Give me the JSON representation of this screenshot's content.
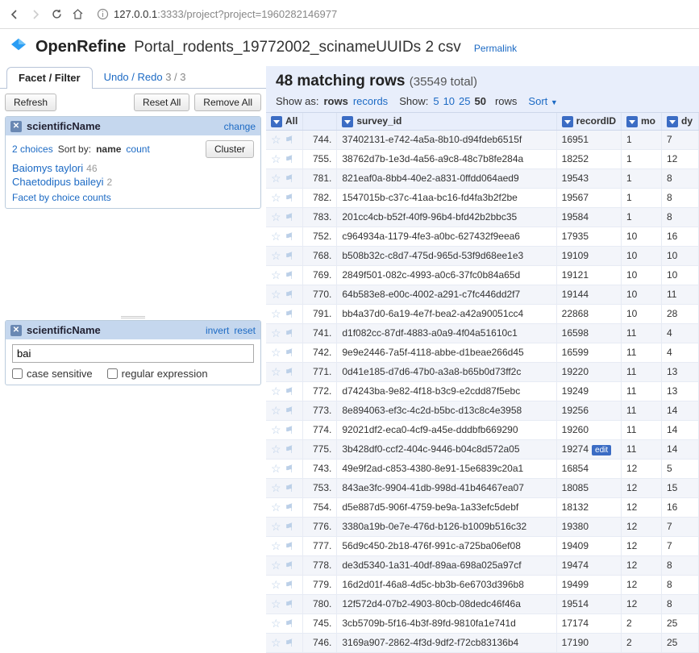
{
  "browser": {
    "url_prefix": "127.0.0.1",
    "url_rest": ":3333/project?project=1960282146977"
  },
  "header": {
    "app_name": "OpenRefine",
    "project_name": "Portal_rodents_19772002_scinameUUIDs 2 csv",
    "permalink": "Permalink"
  },
  "tabs": {
    "facet_filter": "Facet / Filter",
    "undo_redo": "Undo / Redo",
    "undo_count": "3 / 3"
  },
  "buttons": {
    "refresh": "Refresh",
    "reset_all": "Reset All",
    "remove_all": "Remove All",
    "cluster": "Cluster"
  },
  "facet1": {
    "title": "scientificName",
    "change": "change",
    "choices_label": "2 choices",
    "sort_by": "Sort by:",
    "sort_name": "name",
    "sort_count": "count",
    "choices": [
      {
        "label": "Baiomys taylori",
        "count": "46"
      },
      {
        "label": "Chaetodipus baileyi",
        "count": "2"
      }
    ],
    "by_counts": "Facet by choice counts"
  },
  "facet2": {
    "title": "scientificName",
    "invert": "invert",
    "reset": "reset",
    "value": "bai",
    "case_sensitive": "case sensitive",
    "regex": "regular expression"
  },
  "summary": {
    "matching": "48 matching rows",
    "total": "(35549 total)"
  },
  "view": {
    "show_as": "Show as:",
    "rows": "rows",
    "records": "records",
    "show": "Show:",
    "sizes": [
      "5",
      "10",
      "25",
      "50"
    ],
    "selected_size": "50",
    "rows_word": "rows",
    "sort": "Sort"
  },
  "columns": {
    "all": "All",
    "survey_id": "survey_id",
    "recordID": "recordID",
    "mo": "mo",
    "dy": "dy"
  },
  "rows": [
    {
      "idx": "744.",
      "sid": "37402131-e742-4a5a-8b10-d94fdeb6515f",
      "rid": "16951",
      "mo": "1",
      "dy": "7"
    },
    {
      "idx": "755.",
      "sid": "38762d7b-1e3d-4a56-a9c8-48c7b8fe284a",
      "rid": "18252",
      "mo": "1",
      "dy": "12"
    },
    {
      "idx": "781.",
      "sid": "821eaf0a-8bb4-40e2-a831-0ffdd064aed9",
      "rid": "19543",
      "mo": "1",
      "dy": "8"
    },
    {
      "idx": "782.",
      "sid": "1547015b-c37c-41aa-bc16-fd4fa3b2f2be",
      "rid": "19567",
      "mo": "1",
      "dy": "8"
    },
    {
      "idx": "783.",
      "sid": "201cc4cb-b52f-40f9-96b4-bfd42b2bbc35",
      "rid": "19584",
      "mo": "1",
      "dy": "8"
    },
    {
      "idx": "752.",
      "sid": "c964934a-1179-4fe3-a0bc-627432f9eea6",
      "rid": "17935",
      "mo": "10",
      "dy": "16"
    },
    {
      "idx": "768.",
      "sid": "b508b32c-c8d7-475d-965d-53f9d68ee1e3",
      "rid": "19109",
      "mo": "10",
      "dy": "10"
    },
    {
      "idx": "769.",
      "sid": "2849f501-082c-4993-a0c6-37fc0b84a65d",
      "rid": "19121",
      "mo": "10",
      "dy": "10"
    },
    {
      "idx": "770.",
      "sid": "64b583e8-e00c-4002-a291-c7fc446dd2f7",
      "rid": "19144",
      "mo": "10",
      "dy": "11"
    },
    {
      "idx": "791.",
      "sid": "bb4a37d0-6a19-4e7f-bea2-a42a90051cc4",
      "rid": "22868",
      "mo": "10",
      "dy": "28"
    },
    {
      "idx": "741.",
      "sid": "d1f082cc-87df-4883-a0a9-4f04a51610c1",
      "rid": "16598",
      "mo": "11",
      "dy": "4"
    },
    {
      "idx": "742.",
      "sid": "9e9e2446-7a5f-4118-abbe-d1beae266d45",
      "rid": "16599",
      "mo": "11",
      "dy": "4"
    },
    {
      "idx": "771.",
      "sid": "0d41e185-d7d6-47b0-a3a8-b65b0d73ff2c",
      "rid": "19220",
      "mo": "11",
      "dy": "13"
    },
    {
      "idx": "772.",
      "sid": "d74243ba-9e82-4f18-b3c9-e2cdd87f5ebc",
      "rid": "19249",
      "mo": "11",
      "dy": "13"
    },
    {
      "idx": "773.",
      "sid": "8e894063-ef3c-4c2d-b5bc-d13c8c4e3958",
      "rid": "19256",
      "mo": "11",
      "dy": "14"
    },
    {
      "idx": "774.",
      "sid": "92021df2-eca0-4cf9-a45e-dddbfb669290",
      "rid": "19260",
      "mo": "11",
      "dy": "14"
    },
    {
      "idx": "775.",
      "sid": "3b428df0-ccf2-404c-9446-b04c8d572a05",
      "rid": "19274",
      "mo": "11",
      "dy": "14",
      "edit": true
    },
    {
      "idx": "743.",
      "sid": "49e9f2ad-c853-4380-8e91-15e6839c20a1",
      "rid": "16854",
      "mo": "12",
      "dy": "5"
    },
    {
      "idx": "753.",
      "sid": "843ae3fc-9904-41db-998d-41b46467ea07",
      "rid": "18085",
      "mo": "12",
      "dy": "15"
    },
    {
      "idx": "754.",
      "sid": "d5e887d5-906f-4759-be9a-1a33efc5debf",
      "rid": "18132",
      "mo": "12",
      "dy": "16"
    },
    {
      "idx": "776.",
      "sid": "3380a19b-0e7e-476d-b126-b1009b516c32",
      "rid": "19380",
      "mo": "12",
      "dy": "7"
    },
    {
      "idx": "777.",
      "sid": "56d9c450-2b18-476f-991c-a725ba06ef08",
      "rid": "19409",
      "mo": "12",
      "dy": "7"
    },
    {
      "idx": "778.",
      "sid": "de3d5340-1a31-40df-89aa-698a025a97cf",
      "rid": "19474",
      "mo": "12",
      "dy": "8"
    },
    {
      "idx": "779.",
      "sid": "16d2d01f-46a8-4d5c-bb3b-6e6703d396b8",
      "rid": "19499",
      "mo": "12",
      "dy": "8"
    },
    {
      "idx": "780.",
      "sid": "12f572d4-07b2-4903-80cb-08dedc46f46a",
      "rid": "19514",
      "mo": "12",
      "dy": "8"
    },
    {
      "idx": "745.",
      "sid": "3cb5709b-5f16-4b3f-89fd-9810fa1e741d",
      "rid": "17174",
      "mo": "2",
      "dy": "25"
    },
    {
      "idx": "746.",
      "sid": "3169a907-2862-4f3d-9df2-f72cb83136b4",
      "rid": "17190",
      "mo": "2",
      "dy": "25"
    }
  ],
  "edit_label": "edit"
}
